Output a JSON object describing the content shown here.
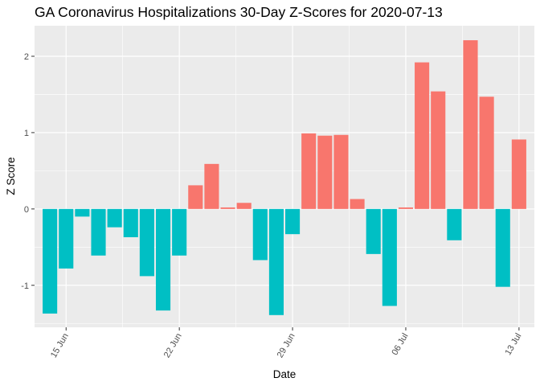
{
  "chart_data": {
    "type": "bar",
    "title": "GA Coronavirus Hospitalizations 30-Day Z-Scores for 2020-07-13",
    "xlabel": "Date",
    "ylabel": "Z Score",
    "ylim": [
      -1.55,
      2.4
    ],
    "y_ticks": [
      -1,
      0,
      1,
      2
    ],
    "x_ticks": [
      {
        "date": "2020-06-15",
        "label": "15 Jun"
      },
      {
        "date": "2020-06-22",
        "label": "22 Jun"
      },
      {
        "date": "2020-06-29",
        "label": "29 Jun"
      },
      {
        "date": "2020-07-06",
        "label": "06 Jul"
      },
      {
        "date": "2020-07-13",
        "label": "13 Jul"
      }
    ],
    "grid": true,
    "positive_color": "#F8766D",
    "negative_color": "#00BFC4",
    "panel_color": "#EBEBEB",
    "dates": [
      "2020-06-14",
      "2020-06-15",
      "2020-06-16",
      "2020-06-17",
      "2020-06-18",
      "2020-06-19",
      "2020-06-20",
      "2020-06-21",
      "2020-06-22",
      "2020-06-23",
      "2020-06-24",
      "2020-06-25",
      "2020-06-26",
      "2020-06-27",
      "2020-06-28",
      "2020-06-29",
      "2020-06-30",
      "2020-07-01",
      "2020-07-02",
      "2020-07-03",
      "2020-07-04",
      "2020-07-05",
      "2020-07-06",
      "2020-07-07",
      "2020-07-08",
      "2020-07-09",
      "2020-07-10",
      "2020-07-11",
      "2020-07-12",
      "2020-07-13"
    ],
    "values": [
      -1.37,
      -0.78,
      -0.1,
      -0.61,
      -0.24,
      -0.37,
      -0.88,
      -1.33,
      -0.61,
      0.31,
      0.59,
      0.02,
      0.08,
      -0.67,
      -1.39,
      -0.33,
      0.99,
      0.96,
      0.97,
      0.13,
      -0.59,
      -1.27,
      0.02,
      1.92,
      1.54,
      -0.41,
      2.21,
      1.47,
      -1.02,
      0.91
    ]
  }
}
